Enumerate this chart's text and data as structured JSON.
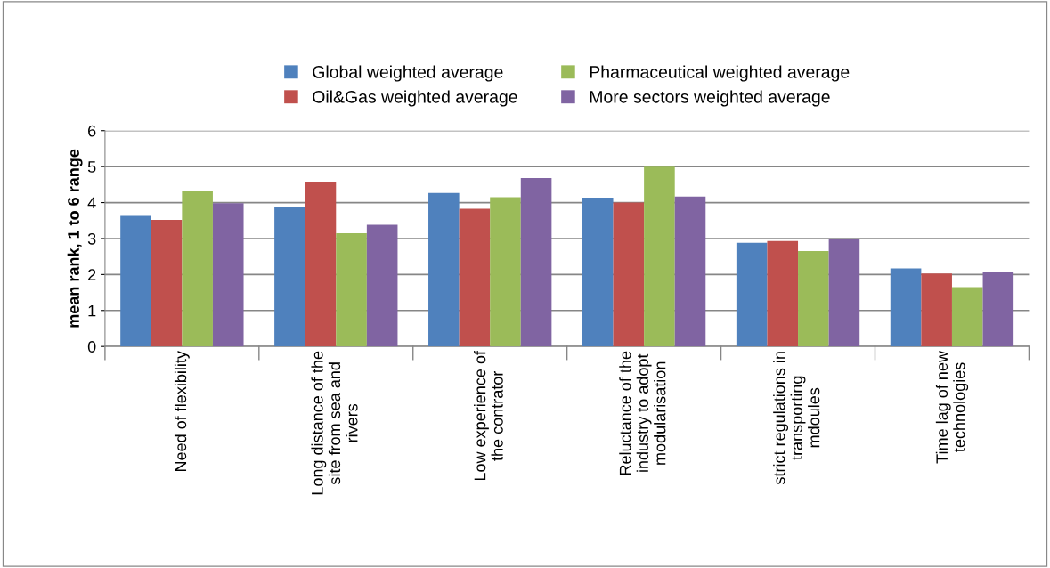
{
  "chart_data": {
    "type": "bar",
    "ylabel": "mean rank, 1 to 6 range",
    "categories": [
      "Need of flexibility",
      "Long distance of the\nsite from sea and\nrivers",
      "Low experience of\nthe contrator",
      "Reluctance of the\nindustry to adopt\nmodularisation",
      "strict regulations in\ntransporting\nmdoules",
      "Time lag of new\ntechnologies"
    ],
    "series": [
      {
        "name": "Global weighted average",
        "color": "#4f81bd",
        "values": [
          3.63,
          3.87,
          4.27,
          4.14,
          2.88,
          2.17
        ]
      },
      {
        "name": "Oil&Gas weighted average",
        "color": "#c0504d",
        "values": [
          3.52,
          4.58,
          3.83,
          4.0,
          2.93,
          2.03
        ]
      },
      {
        "name": "Pharmaceutical weighted average",
        "color": "#9bbb59",
        "values": [
          4.32,
          3.15,
          4.15,
          5.0,
          2.65,
          1.65
        ]
      },
      {
        "name": "More sectors weighted average",
        "color": "#8064a2",
        "values": [
          3.98,
          3.38,
          4.68,
          4.17,
          2.99,
          2.08
        ]
      }
    ],
    "ylim": [
      0,
      6
    ],
    "yticks": [
      0,
      1,
      2,
      3,
      4,
      5,
      6
    ],
    "grid": "y",
    "legend": "top"
  }
}
